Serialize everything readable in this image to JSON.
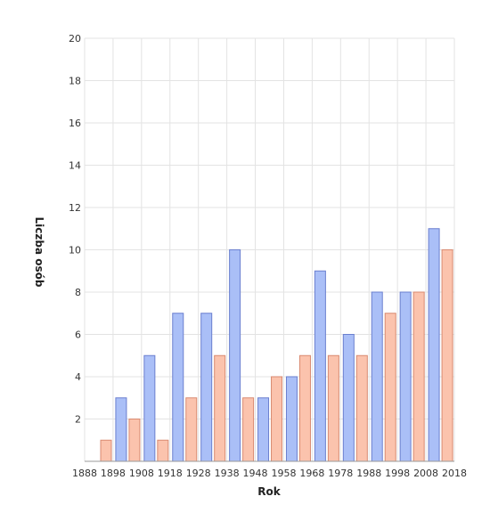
{
  "chart_data": {
    "type": "bar",
    "xlabel": "Rok",
    "ylabel": "Liczba osób",
    "ylim": [
      0,
      20
    ],
    "yticks": [
      2,
      4,
      6,
      8,
      10,
      12,
      14,
      16,
      18,
      20
    ],
    "xticks": [
      "1888",
      "1898",
      "1908",
      "1918",
      "1928",
      "1938",
      "1948",
      "1958",
      "1968",
      "1978",
      "1988",
      "1998",
      "2008",
      "2018"
    ],
    "grid": true,
    "legend": "none",
    "series": [
      {
        "color": "#aabff7",
        "stroke": "#6a7fcf",
        "values": [
          0,
          3,
          5,
          7,
          7,
          10,
          3,
          4,
          9,
          6,
          8,
          8,
          11
        ]
      },
      {
        "color": "#fbc3ad",
        "stroke": "#d98a70",
        "values": [
          1,
          2,
          1,
          3,
          5,
          3,
          4,
          5,
          5,
          5,
          7,
          8,
          10
        ]
      }
    ]
  }
}
